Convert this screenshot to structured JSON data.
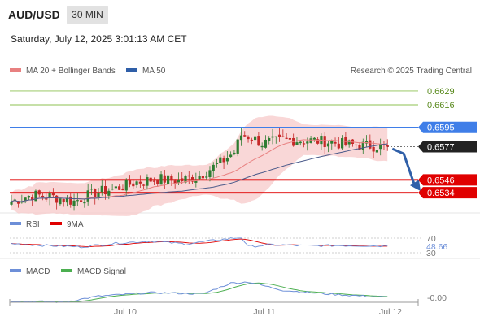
{
  "header": {
    "pair": "AUD/USD",
    "timeframe": "30 MIN",
    "datetime": "Saturday, July 12, 2025 3:01:13 AM CET"
  },
  "legend": {
    "ma20": "MA 20 + Bollinger Bands",
    "ma50": "MA 50",
    "credit": "Research © 2025 Trading Central"
  },
  "colors": {
    "up": "#2e7d32",
    "down": "#c62828",
    "ma20": "#e88080",
    "ma50": "#4a5a8a",
    "band": "#f7c9c9",
    "resistance": "#8cc152",
    "pivot": "#3f7ee8",
    "support": "#e00000",
    "current": "#222222",
    "arrow": "#2f5fa8"
  },
  "price_levels": [
    {
      "value": 0.6629,
      "label": "0.6629",
      "kind": "resistance"
    },
    {
      "value": 0.6616,
      "label": "0.6616",
      "kind": "resistance"
    },
    {
      "value": 0.6595,
      "label": "0.6595",
      "kind": "pivot"
    },
    {
      "value": 0.6577,
      "label": "0.6577",
      "kind": "current"
    },
    {
      "value": 0.6546,
      "label": "0.6546",
      "kind": "support"
    },
    {
      "value": 0.6534,
      "label": "0.6534",
      "kind": "support"
    }
  ],
  "rsi": {
    "label": "RSI",
    "ma_label": "9MA",
    "levels": [
      "70",
      "30"
    ],
    "value": "48.66"
  },
  "macd": {
    "label": "MACD",
    "signal_label": "MACD Signal",
    "value": "-0.00"
  },
  "x_axis": {
    "ticks": [
      "Jul 10",
      "Jul 11",
      "Jul 12"
    ]
  },
  "chart_data": {
    "type": "candlestick",
    "title": "AUD/USD",
    "ylim": [
      0.6522,
      0.6638
    ],
    "close_path": [
      [
        0,
        0.6526
      ],
      [
        6,
        0.6532
      ],
      [
        12,
        0.653
      ],
      [
        18,
        0.6526
      ],
      [
        24,
        0.6534
      ],
      [
        30,
        0.6538
      ],
      [
        36,
        0.6544
      ],
      [
        42,
        0.6547
      ],
      [
        48,
        0.6545
      ],
      [
        54,
        0.655
      ],
      [
        60,
        0.6562
      ],
      [
        64,
        0.6572
      ],
      [
        66,
        0.6588
      ],
      [
        69,
        0.6586
      ],
      [
        72,
        0.658
      ],
      [
        78,
        0.6583
      ],
      [
        84,
        0.6583
      ],
      [
        90,
        0.6582
      ],
      [
        96,
        0.6579
      ],
      [
        102,
        0.6578
      ],
      [
        108,
        0.6577
      ]
    ],
    "series": [
      {
        "name": "MA 20 + Bollinger Bands"
      },
      {
        "name": "MA 50"
      }
    ],
    "rsi_series": [
      [
        0,
        55
      ],
      [
        10,
        50
      ],
      [
        20,
        46
      ],
      [
        30,
        56
      ],
      [
        40,
        62
      ],
      [
        50,
        54
      ],
      [
        60,
        66
      ],
      [
        66,
        72
      ],
      [
        68,
        47
      ],
      [
        75,
        52
      ],
      [
        85,
        49
      ],
      [
        95,
        50
      ],
      [
        108,
        48.66
      ]
    ],
    "macd_series": [
      [
        0,
        -0.0003
      ],
      [
        15,
        -0.0004
      ],
      [
        25,
        0.0001
      ],
      [
        40,
        0.0004
      ],
      [
        55,
        0.0003
      ],
      [
        63,
        0.0012
      ],
      [
        68,
        0.0013
      ],
      [
        78,
        0.0006
      ],
      [
        90,
        0.0003
      ],
      [
        108,
        0.0
      ]
    ]
  }
}
